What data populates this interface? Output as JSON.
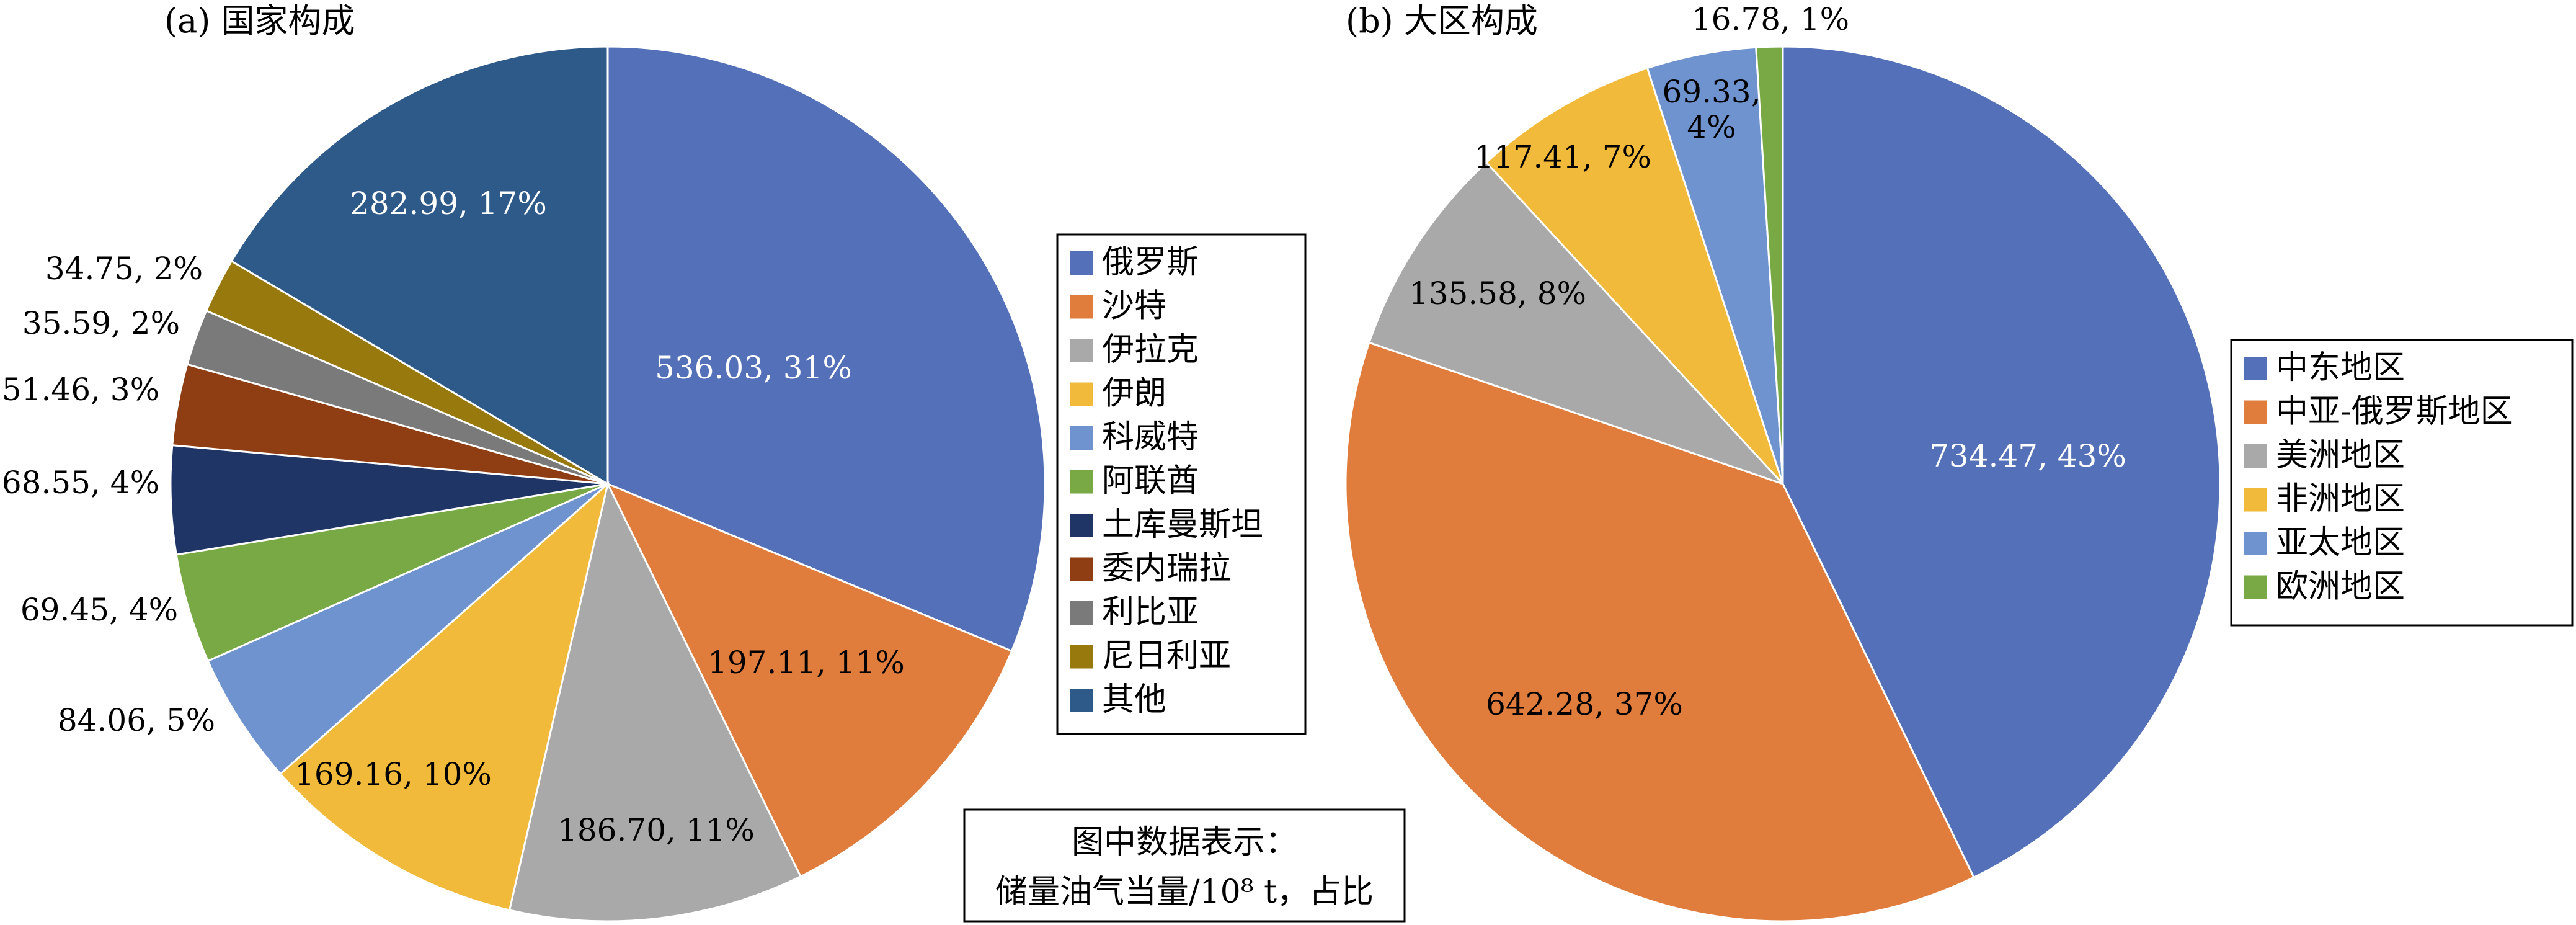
{
  "chart_data": [
    {
      "type": "pie",
      "title": "(a) 国家构成",
      "slices": [
        {
          "name": "俄罗斯",
          "value": 536.03,
          "label": "536.03, 31%",
          "color": "#5470B8"
        },
        {
          "name": "沙特",
          "value": 197.11,
          "label": "197.11, 11%",
          "color": "#E07D3C"
        },
        {
          "name": "伊拉克",
          "value": 186.7,
          "label": "186.70, 11%",
          "color": "#A9A9A9"
        },
        {
          "name": "伊朗",
          "value": 169.16,
          "label": "169.16, 10%",
          "color": "#F2BA3A"
        },
        {
          "name": "科威特",
          "value": 84.06,
          "label": "84.06, 5%",
          "color": "#6E93CF"
        },
        {
          "name": "阿联酋",
          "value": 69.45,
          "label": "69.45, 4%",
          "color": "#78A944"
        },
        {
          "name": "土库曼斯坦",
          "value": 68.55,
          "label": "68.55, 4%",
          "color": "#1F3566"
        },
        {
          "name": "委内瑞拉",
          "value": 51.46,
          "label": "51.46, 3%",
          "color": "#8E3E12"
        },
        {
          "name": "利比亚",
          "value": 35.59,
          "label": "35.59, 2%",
          "color": "#7A7A7A"
        },
        {
          "name": "尼日利亚",
          "value": 34.75,
          "label": "34.75, 2%",
          "color": "#98790D"
        },
        {
          "name": "其他",
          "value": 282.99,
          "label": "282.99, 17%",
          "color": "#2E5A8A"
        }
      ]
    },
    {
      "type": "pie",
      "title": "(b) 大区构成",
      "slices": [
        {
          "name": "中东地区",
          "value": 734.47,
          "label": "734.47, 43%",
          "color": "#5470B8"
        },
        {
          "name": "中亚-俄罗斯地区",
          "value": 642.28,
          "label": "642.28, 37%",
          "color": "#E07D3C"
        },
        {
          "name": "美洲地区",
          "value": 135.58,
          "label": "135.58, 8%",
          "color": "#A9A9A9"
        },
        {
          "name": "非洲地区",
          "value": 117.41,
          "label": "117.41, 7%",
          "color": "#F2BA3A"
        },
        {
          "name": "亚太地区",
          "value": 69.33,
          "label": "69.33, 4%",
          "color": "#6E93CF"
        },
        {
          "name": "欧洲地区",
          "value": 16.78,
          "label": "16.78, 1%",
          "color": "#78A944"
        }
      ]
    }
  ],
  "note": {
    "line1": "图中数据表示：",
    "line2": "储量油气当量/10⁸ t，占比"
  }
}
